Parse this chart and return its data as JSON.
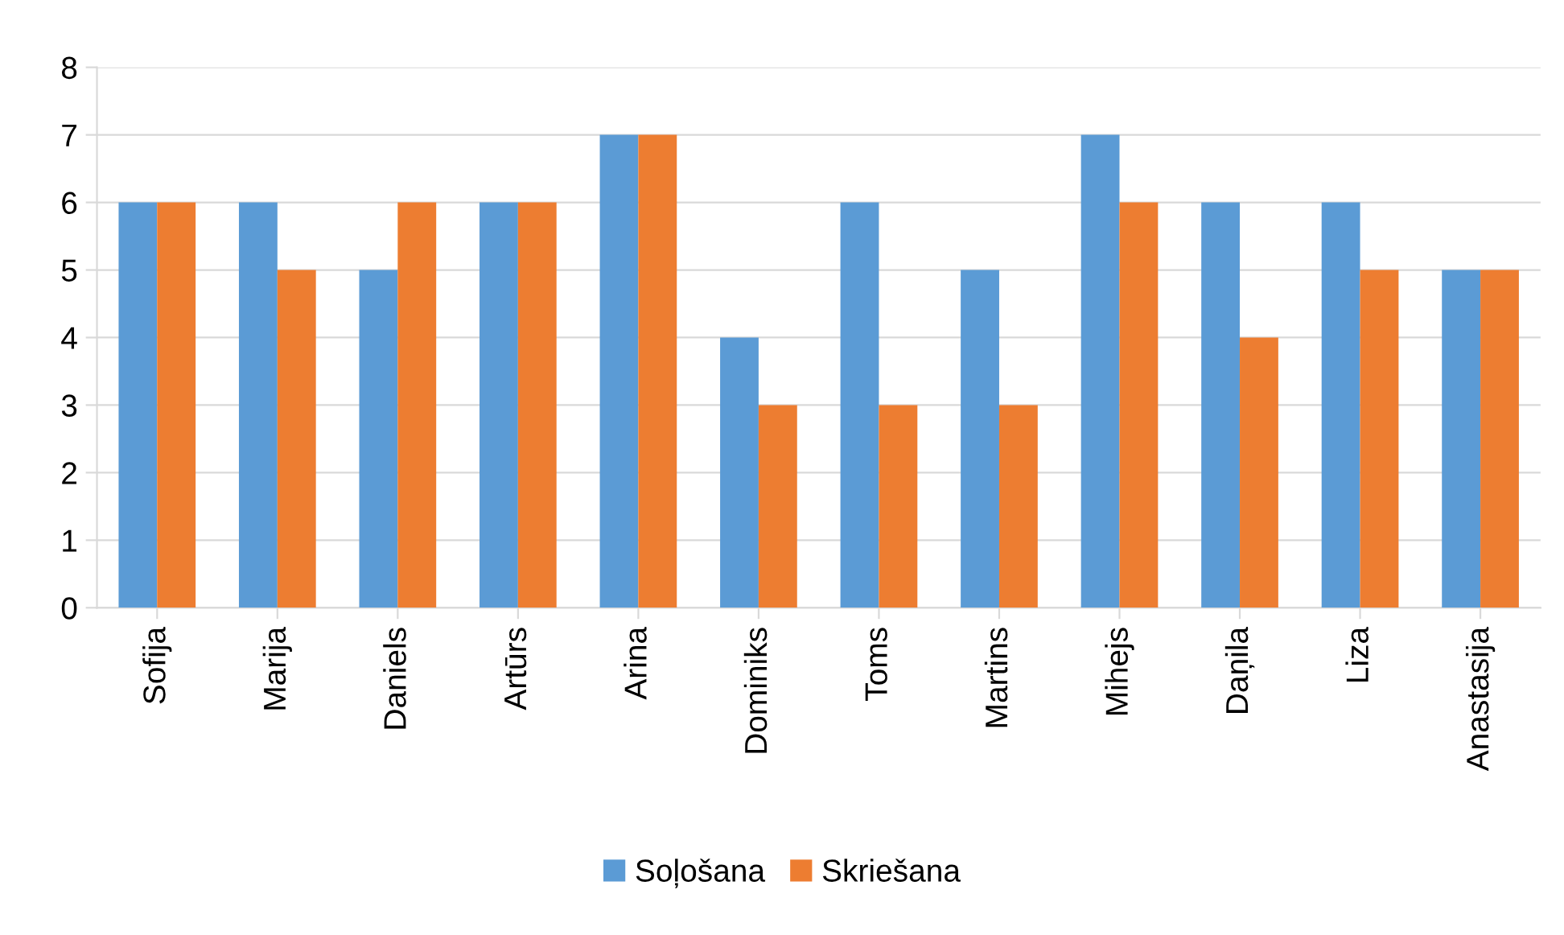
{
  "chart_data": {
    "type": "bar",
    "categories": [
      "Sofija",
      "Marija",
      "Daniels",
      "Artūrs",
      "Arina",
      "Dominiks",
      "Toms",
      "Martins",
      "Mihejs",
      "Daņila",
      "Liza",
      "Anastasija"
    ],
    "series": [
      {
        "name": "Soļošana",
        "color": "#5b9bd5",
        "values": [
          6,
          6,
          5,
          6,
          7,
          4,
          6,
          5,
          7,
          6,
          6,
          5
        ]
      },
      {
        "name": "Skriešana",
        "color": "#ed7d31",
        "values": [
          6,
          5,
          6,
          6,
          7,
          3,
          3,
          3,
          6,
          4,
          5,
          5
        ]
      }
    ],
    "ylim": [
      0,
      8
    ],
    "yticks": [
      0,
      1,
      2,
      3,
      4,
      5,
      6,
      7,
      8
    ],
    "grid": "y",
    "legend": "bottom"
  }
}
